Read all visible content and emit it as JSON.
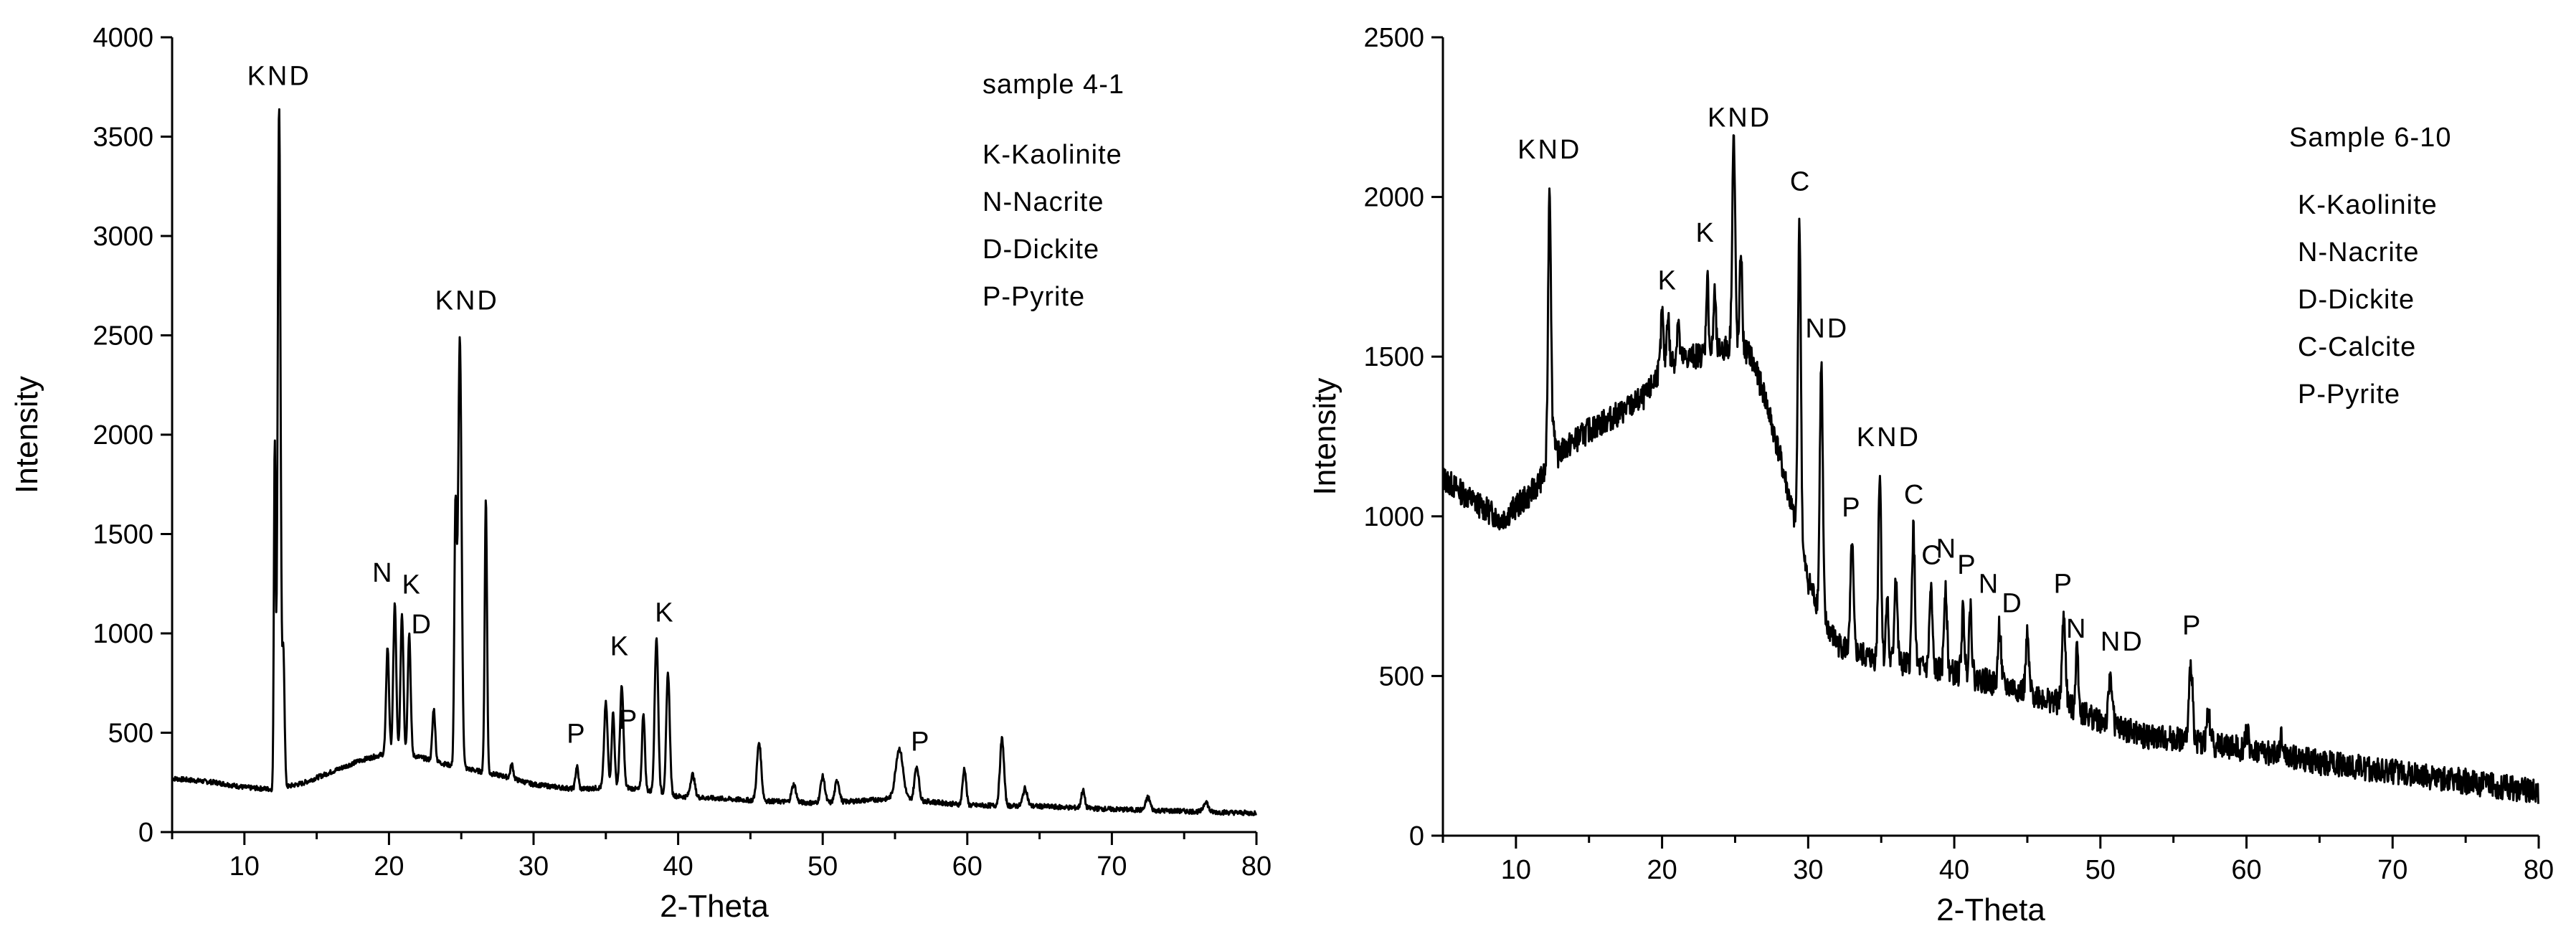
{
  "chart_data": [
    {
      "type": "line",
      "xlabel": "2-Theta",
      "ylabel": "Intensity",
      "xlim": [
        5,
        80
      ],
      "ylim": [
        0,
        4000
      ],
      "xticks": [
        10,
        20,
        30,
        40,
        50,
        60,
        70,
        80
      ],
      "yticks": [
        0,
        500,
        1000,
        1500,
        2000,
        2500,
        3000,
        3500,
        4000
      ],
      "background": [
        [
          5,
          270
        ],
        [
          8,
          250
        ],
        [
          10,
          225
        ],
        [
          12,
          215
        ],
        [
          14,
          245
        ],
        [
          18,
          360
        ],
        [
          20,
          400
        ],
        [
          22,
          380
        ],
        [
          24,
          340
        ],
        [
          26,
          310
        ],
        [
          28,
          280
        ],
        [
          30,
          240
        ],
        [
          33,
          215
        ],
        [
          36,
          230
        ],
        [
          40,
          180
        ],
        [
          45,
          160
        ],
        [
          50,
          145
        ],
        [
          55,
          170
        ],
        [
          60,
          135
        ],
        [
          65,
          130
        ],
        [
          70,
          115
        ],
        [
          75,
          105
        ],
        [
          80,
          95
        ]
      ],
      "peaks": [
        {
          "x": 12.4,
          "y": 3660,
          "w": 0.1
        },
        {
          "x": 12.1,
          "y": 1950,
          "w": 0.06
        },
        {
          "x": 12.7,
          "y": 900,
          "w": 0.08
        },
        {
          "x": 19.9,
          "y": 930,
          "w": 0.1
        },
        {
          "x": 20.4,
          "y": 1150,
          "w": 0.1
        },
        {
          "x": 20.9,
          "y": 1100,
          "w": 0.1
        },
        {
          "x": 21.4,
          "y": 1000,
          "w": 0.1
        },
        {
          "x": 23.1,
          "y": 620,
          "w": 0.1
        },
        {
          "x": 24.9,
          "y": 2490,
          "w": 0.12
        },
        {
          "x": 24.6,
          "y": 1600,
          "w": 0.08
        },
        {
          "x": 26.7,
          "y": 1680,
          "w": 0.08
        },
        {
          "x": 28.5,
          "y": 340,
          "w": 0.1
        },
        {
          "x": 33.0,
          "y": 330,
          "w": 0.1
        },
        {
          "x": 35.0,
          "y": 650,
          "w": 0.12
        },
        {
          "x": 35.5,
          "y": 600,
          "w": 0.1
        },
        {
          "x": 36.1,
          "y": 730,
          "w": 0.12
        },
        {
          "x": 37.6,
          "y": 600,
          "w": 0.1
        },
        {
          "x": 38.5,
          "y": 980,
          "w": 0.12
        },
        {
          "x": 39.3,
          "y": 800,
          "w": 0.12
        },
        {
          "x": 41.0,
          "y": 290,
          "w": 0.15
        },
        {
          "x": 45.6,
          "y": 450,
          "w": 0.15
        },
        {
          "x": 48.0,
          "y": 240,
          "w": 0.15
        },
        {
          "x": 50.0,
          "y": 280,
          "w": 0.15
        },
        {
          "x": 51.0,
          "y": 260,
          "w": 0.15
        },
        {
          "x": 55.3,
          "y": 420,
          "w": 0.25
        },
        {
          "x": 56.5,
          "y": 330,
          "w": 0.15
        },
        {
          "x": 59.8,
          "y": 320,
          "w": 0.12
        },
        {
          "x": 62.4,
          "y": 470,
          "w": 0.14
        },
        {
          "x": 64.0,
          "y": 220,
          "w": 0.15
        },
        {
          "x": 68.0,
          "y": 210,
          "w": 0.12
        },
        {
          "x": 72.5,
          "y": 175,
          "w": 0.15
        },
        {
          "x": 76.5,
          "y": 155,
          "w": 0.15
        }
      ],
      "noise": 12,
      "annotations": [
        {
          "text": "KND",
          "x": 12.4,
          "y": 3760
        },
        {
          "text": "N",
          "x": 19.6,
          "y": 1260
        },
        {
          "text": "K",
          "x": 21.6,
          "y": 1200
        },
        {
          "text": "D",
          "x": 22.3,
          "y": 1000
        },
        {
          "text": "KND",
          "x": 25.4,
          "y": 2630
        },
        {
          "text": "P",
          "x": 33.0,
          "y": 450
        },
        {
          "text": "K",
          "x": 36.0,
          "y": 890
        },
        {
          "text": "P",
          "x": 36.6,
          "y": 520
        },
        {
          "text": "K",
          "x": 39.1,
          "y": 1060
        },
        {
          "text": "P",
          "x": 56.8,
          "y": 410
        }
      ],
      "legend": {
        "title": "sample 4-1",
        "entries": [
          "K-Kaolinite",
          "N-Nacrite",
          "D-Dickite",
          "P-Pyrite"
        ]
      }
    },
    {
      "type": "line",
      "xlabel": "2-Theta",
      "ylabel": "Intensity",
      "xlim": [
        5,
        80
      ],
      "ylim": [
        0,
        2500
      ],
      "xticks": [
        10,
        20,
        30,
        40,
        50,
        60,
        70,
        80
      ],
      "yticks": [
        0,
        500,
        1000,
        1500,
        2000,
        2500
      ],
      "background": [
        [
          5,
          1120
        ],
        [
          7,
          1050
        ],
        [
          9,
          990
        ],
        [
          11,
          1070
        ],
        [
          13,
          1200
        ],
        [
          15,
          1270
        ],
        [
          17,
          1320
        ],
        [
          19,
          1380
        ],
        [
          20,
          1480
        ],
        [
          22,
          1500
        ],
        [
          24,
          1520
        ],
        [
          25,
          1540
        ],
        [
          26,
          1510
        ],
        [
          27,
          1380
        ],
        [
          28,
          1200
        ],
        [
          29,
          1000
        ],
        [
          30,
          800
        ],
        [
          31,
          680
        ],
        [
          32,
          600
        ],
        [
          34,
          560
        ],
        [
          36,
          540
        ],
        [
          40,
          510
        ],
        [
          45,
          450
        ],
        [
          48,
          400
        ],
        [
          50,
          360
        ],
        [
          53,
          310
        ],
        [
          56,
          300
        ],
        [
          60,
          270
        ],
        [
          65,
          230
        ],
        [
          70,
          200
        ],
        [
          75,
          170
        ],
        [
          80,
          135
        ]
      ],
      "peaks": [
        {
          "x": 12.3,
          "y": 2040,
          "w": 0.1
        },
        {
          "x": 12.6,
          "y": 1280,
          "w": 0.08
        },
        {
          "x": 20.0,
          "y": 1640,
          "w": 0.08
        },
        {
          "x": 20.4,
          "y": 1640,
          "w": 0.08
        },
        {
          "x": 21.1,
          "y": 1620,
          "w": 0.08
        },
        {
          "x": 23.1,
          "y": 1750,
          "w": 0.08
        },
        {
          "x": 23.6,
          "y": 1700,
          "w": 0.08
        },
        {
          "x": 24.9,
          "y": 2190,
          "w": 0.1
        },
        {
          "x": 25.4,
          "y": 1840,
          "w": 0.08
        },
        {
          "x": 29.4,
          "y": 1930,
          "w": 0.1
        },
        {
          "x": 30.9,
          "y": 1480,
          "w": 0.1
        },
        {
          "x": 33.0,
          "y": 910,
          "w": 0.1
        },
        {
          "x": 34.9,
          "y": 1140,
          "w": 0.1
        },
        {
          "x": 35.4,
          "y": 760,
          "w": 0.08
        },
        {
          "x": 36.0,
          "y": 820,
          "w": 0.1
        },
        {
          "x": 37.2,
          "y": 960,
          "w": 0.1
        },
        {
          "x": 38.4,
          "y": 770,
          "w": 0.1
        },
        {
          "x": 39.4,
          "y": 790,
          "w": 0.1
        },
        {
          "x": 40.6,
          "y": 700,
          "w": 0.1
        },
        {
          "x": 41.1,
          "y": 720,
          "w": 0.1
        },
        {
          "x": 43.1,
          "y": 660,
          "w": 0.1
        },
        {
          "x": 45.0,
          "y": 620,
          "w": 0.1
        },
        {
          "x": 47.5,
          "y": 680,
          "w": 0.12
        },
        {
          "x": 48.4,
          "y": 590,
          "w": 0.1
        },
        {
          "x": 50.7,
          "y": 500,
          "w": 0.12
        },
        {
          "x": 56.2,
          "y": 540,
          "w": 0.12
        },
        {
          "x": 57.4,
          "y": 380,
          "w": 0.12
        },
        {
          "x": 60.0,
          "y": 330,
          "w": 0.12
        },
        {
          "x": 62.4,
          "y": 300,
          "w": 0.12
        }
      ],
      "noise": 40,
      "annotations": [
        {
          "text": "KND",
          "x": 12.3,
          "y": 2120
        },
        {
          "text": "K",
          "x": 20.4,
          "y": 1710
        },
        {
          "text": "K",
          "x": 23.0,
          "y": 1860
        },
        {
          "text": "KND",
          "x": 25.3,
          "y": 2220
        },
        {
          "text": "C",
          "x": 29.5,
          "y": 2020
        },
        {
          "text": "ND",
          "x": 31.3,
          "y": 1560
        },
        {
          "text": "KND",
          "x": 35.5,
          "y": 1220
        },
        {
          "text": "P",
          "x": 33.0,
          "y": 1000
        },
        {
          "text": "C",
          "x": 37.3,
          "y": 1040
        },
        {
          "text": "C",
          "x": 38.5,
          "y": 850
        },
        {
          "text": "N",
          "x": 39.5,
          "y": 870
        },
        {
          "text": "P",
          "x": 40.9,
          "y": 820
        },
        {
          "text": "N",
          "x": 42.4,
          "y": 760
        },
        {
          "text": "D",
          "x": 44.0,
          "y": 700
        },
        {
          "text": "P",
          "x": 47.5,
          "y": 760
        },
        {
          "text": "N",
          "x": 48.4,
          "y": 620
        },
        {
          "text": "ND",
          "x": 51.5,
          "y": 580
        },
        {
          "text": "P",
          "x": 56.3,
          "y": 630
        }
      ],
      "legend": {
        "title": "Sample 6-10",
        "entries": [
          "K-Kaolinite",
          "N-Nacrite",
          "D-Dickite",
          "C-Calcite",
          "P-Pyrite"
        ]
      }
    }
  ]
}
